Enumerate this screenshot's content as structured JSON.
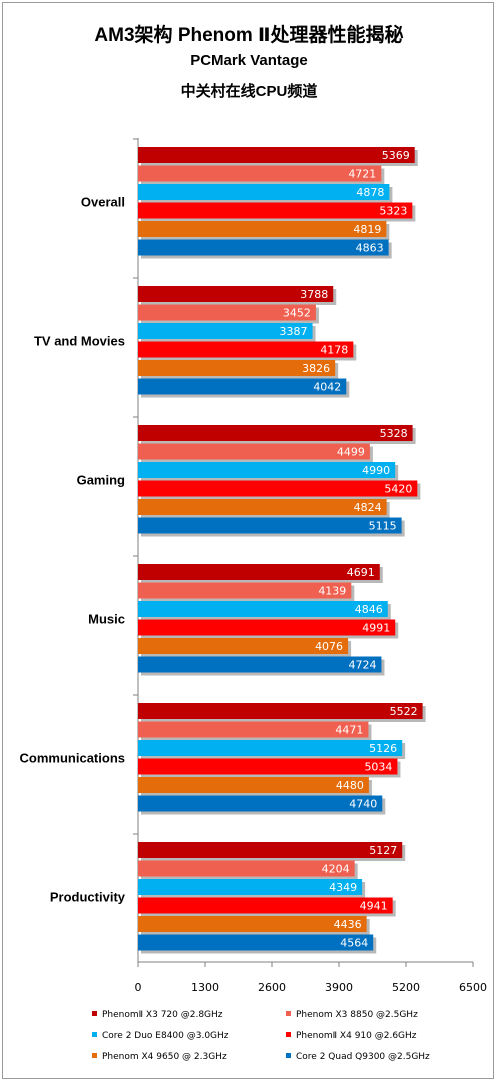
{
  "title_lines": [
    "AM3架构 Phenom Ⅱ处理器性能揭秘",
    "PCMark Vantage",
    "中关村在线CPU频道"
  ],
  "chart_data": {
    "type": "bar",
    "orientation": "horizontal",
    "categories": [
      "Overall",
      "TV and Movies",
      "Gaming",
      "Music",
      "Communications",
      "Productivity"
    ],
    "series": [
      {
        "name": "PhenomⅡ X3  720  @2.8GHz",
        "color": "#c00000",
        "values": [
          5369,
          3788,
          5328,
          4691,
          5522,
          5127
        ]
      },
      {
        "name": "Phenom X3 8850    @2.5GHz",
        "color": "#f06050",
        "values": [
          4721,
          3452,
          4499,
          4139,
          4471,
          4204
        ]
      },
      {
        "name": "Core 2 Duo E8400  @3.0GHz",
        "color": "#00b0f0",
        "values": [
          4878,
          3387,
          4990,
          4846,
          5126,
          4349
        ]
      },
      {
        "name": "PhenomⅡ X4 910  @2.6GHz",
        "color": "#ff0000",
        "values": [
          5323,
          4178,
          5420,
          4991,
          5034,
          4941
        ]
      },
      {
        "name": "Phenom X4 9650  @ 2.3GHz",
        "color": "#e46c0a",
        "values": [
          4819,
          3826,
          4824,
          4076,
          4480,
          4436
        ]
      },
      {
        "name": "Core 2 Quad Q9300   @2.5GHz",
        "color": "#0070c0",
        "values": [
          4863,
          4042,
          5115,
          4724,
          4740,
          4564
        ]
      }
    ],
    "xlim": [
      0,
      6500
    ],
    "xticks": [
      0,
      1300,
      2600,
      3900,
      5200,
      6500
    ],
    "grid": false,
    "legend_position": "bottom"
  }
}
